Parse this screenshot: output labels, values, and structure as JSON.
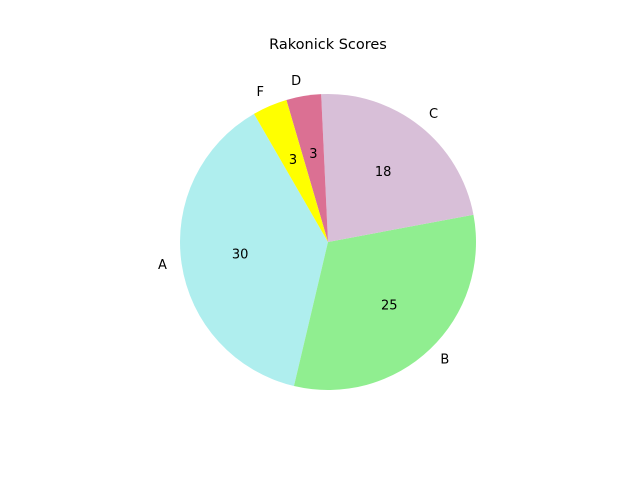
{
  "chart_data": {
    "type": "pie",
    "title": "Rakonick Scores",
    "categories": [
      "A",
      "B",
      "C",
      "D",
      "F"
    ],
    "values": [
      30,
      25,
      18,
      3,
      3
    ],
    "colors": [
      "#afeeee",
      "#90ee90",
      "#d8bfd8",
      "#db7093",
      "#ffff00"
    ],
    "start_angle_deg": 120,
    "direction": "counterclockwise",
    "legend": "none"
  }
}
